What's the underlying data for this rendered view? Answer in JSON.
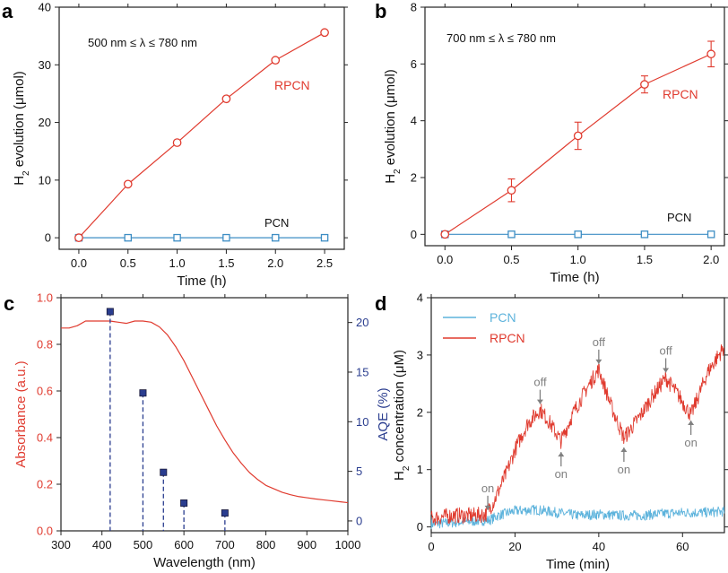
{
  "colors": {
    "red": "#e03b2f",
    "blue": "#3e8ec4",
    "navy": "#2a3d8f",
    "cyan": "#5db3dc",
    "gray": "#808080"
  },
  "chart_data": [
    {
      "panel": "a",
      "type": "line",
      "xlabel": "Time (h)",
      "ylabel_main": "H",
      "ylabel_sub": "2",
      "ylabel_rest": " evolution (μmol)",
      "xlim": [
        -0.2,
        2.7
      ],
      "ylim": [
        -2,
        40
      ],
      "xticks": [
        0.0,
        0.5,
        1.0,
        1.5,
        2.0,
        2.5
      ],
      "yticks": [
        0,
        10,
        20,
        30,
        40
      ],
      "annotation": "500 nm ≤ λ ≤ 780 nm",
      "series": [
        {
          "name": "RPCN",
          "marker": "circle",
          "x": [
            0.0,
            0.5,
            1.0,
            1.5,
            2.0,
            2.5
          ],
          "y": [
            0,
            9.3,
            16.5,
            24.1,
            30.8,
            35.6
          ]
        },
        {
          "name": "PCN",
          "marker": "square",
          "x": [
            0.0,
            0.5,
            1.0,
            1.5,
            2.0,
            2.5
          ],
          "y": [
            0,
            0,
            0,
            0,
            0,
            0
          ]
        }
      ]
    },
    {
      "panel": "b",
      "type": "line",
      "xlabel": "Time (h)",
      "ylabel_main": "H",
      "ylabel_sub": "2",
      "ylabel_rest": " evolution (μmol)",
      "xlim": [
        -0.15,
        2.1
      ],
      "ylim": [
        -0.4,
        8
      ],
      "xticks": [
        0.0,
        0.5,
        1.0,
        1.5,
        2.0
      ],
      "yticks": [
        0,
        2,
        4,
        6,
        8
      ],
      "annotation": "700 nm ≤ λ ≤ 780 nm",
      "series": [
        {
          "name": "RPCN",
          "marker": "circle",
          "x": [
            0.0,
            0.5,
            1.0,
            1.5,
            2.0
          ],
          "y": [
            0,
            1.55,
            3.47,
            5.28,
            6.35
          ],
          "err": [
            0,
            0.4,
            0.48,
            0.3,
            0.45
          ]
        },
        {
          "name": "PCN",
          "marker": "square",
          "x": [
            0.0,
            0.5,
            1.0,
            1.5,
            2.0
          ],
          "y": [
            0,
            0,
            0,
            0,
            0
          ]
        }
      ]
    },
    {
      "panel": "c",
      "type": "line",
      "xlabel": "Wavelength (nm)",
      "ylabel": "Absorbance (a.u.)",
      "ylabel_right": "AQE  (%)",
      "xlim": [
        300,
        1000
      ],
      "ylim": [
        0,
        1.0
      ],
      "ylim_right": [
        -1,
        22.5
      ],
      "xticks": [
        300,
        400,
        500,
        600,
        700,
        800,
        900,
        1000
      ],
      "yticks": [
        0.0,
        0.2,
        0.4,
        0.6,
        0.8,
        1.0
      ],
      "yticks_right": [
        0,
        5,
        10,
        15,
        20
      ],
      "series": [
        {
          "name": "Absorbance",
          "x": [
            300,
            320,
            340,
            360,
            380,
            400,
            420,
            440,
            460,
            480,
            500,
            520,
            540,
            560,
            580,
            600,
            620,
            640,
            660,
            680,
            700,
            720,
            740,
            760,
            780,
            800,
            820,
            840,
            860,
            880,
            900,
            920,
            940,
            960,
            980,
            1000
          ],
          "y": [
            0.87,
            0.87,
            0.88,
            0.9,
            0.9,
            0.9,
            0.9,
            0.895,
            0.89,
            0.9,
            0.9,
            0.895,
            0.875,
            0.84,
            0.79,
            0.73,
            0.66,
            0.59,
            0.52,
            0.45,
            0.39,
            0.335,
            0.29,
            0.25,
            0.22,
            0.195,
            0.18,
            0.165,
            0.155,
            0.147,
            0.142,
            0.137,
            0.133,
            0.129,
            0.125,
            0.121
          ]
        },
        {
          "name": "AQE",
          "axis": "right",
          "marker": "square",
          "x": [
            420,
            500,
            550,
            600,
            700
          ],
          "y": [
            21.1,
            12.9,
            4.9,
            1.8,
            0.8
          ]
        }
      ]
    },
    {
      "panel": "d",
      "type": "line",
      "xlabel": "Time (min)",
      "ylabel_main": "H",
      "ylabel_sub": "2",
      "ylabel_rest": " concentration (μM)",
      "xlim": [
        0,
        70
      ],
      "ylim": [
        -0.1,
        4
      ],
      "xticks": [
        0,
        20,
        40,
        60
      ],
      "yticks": [
        0,
        1,
        2,
        3,
        4
      ],
      "legend": [
        "PCN",
        "RPCN"
      ],
      "annotations": [
        {
          "label": "on",
          "x": 13.5,
          "y": 0.2,
          "pos": "above"
        },
        {
          "label": "off",
          "x": 26,
          "y": 2.05,
          "pos": "above"
        },
        {
          "label": "on",
          "x": 31,
          "y": 1.4,
          "pos": "below"
        },
        {
          "label": "off",
          "x": 40,
          "y": 2.75,
          "pos": "above"
        },
        {
          "label": "on",
          "x": 46,
          "y": 1.48,
          "pos": "below"
        },
        {
          "label": "off",
          "x": 56,
          "y": 2.6,
          "pos": "above"
        },
        {
          "label": "on",
          "x": 62,
          "y": 1.95,
          "pos": "below"
        }
      ],
      "series": [
        {
          "name": "RPCN",
          "x": [
            0,
            5,
            10,
            13,
            15,
            18,
            20,
            23,
            26,
            28,
            31,
            34,
            37,
            40,
            43,
            46,
            50,
            53,
            56,
            59,
            62,
            66,
            70
          ],
          "y": [
            0.15,
            0.2,
            0.2,
            0.22,
            0.45,
            0.95,
            1.35,
            1.8,
            2.05,
            1.85,
            1.5,
            2.0,
            2.4,
            2.75,
            2.1,
            1.55,
            1.95,
            2.3,
            2.6,
            2.3,
            1.95,
            2.7,
            3.15
          ]
        },
        {
          "name": "PCN",
          "x": [
            0,
            10,
            14,
            16,
            20,
            25,
            30,
            35,
            40,
            45,
            50,
            55,
            60,
            65,
            70
          ],
          "y": [
            0.05,
            0.1,
            0.12,
            0.2,
            0.28,
            0.3,
            0.25,
            0.2,
            0.22,
            0.2,
            0.2,
            0.23,
            0.25,
            0.25,
            0.27
          ]
        }
      ]
    }
  ]
}
